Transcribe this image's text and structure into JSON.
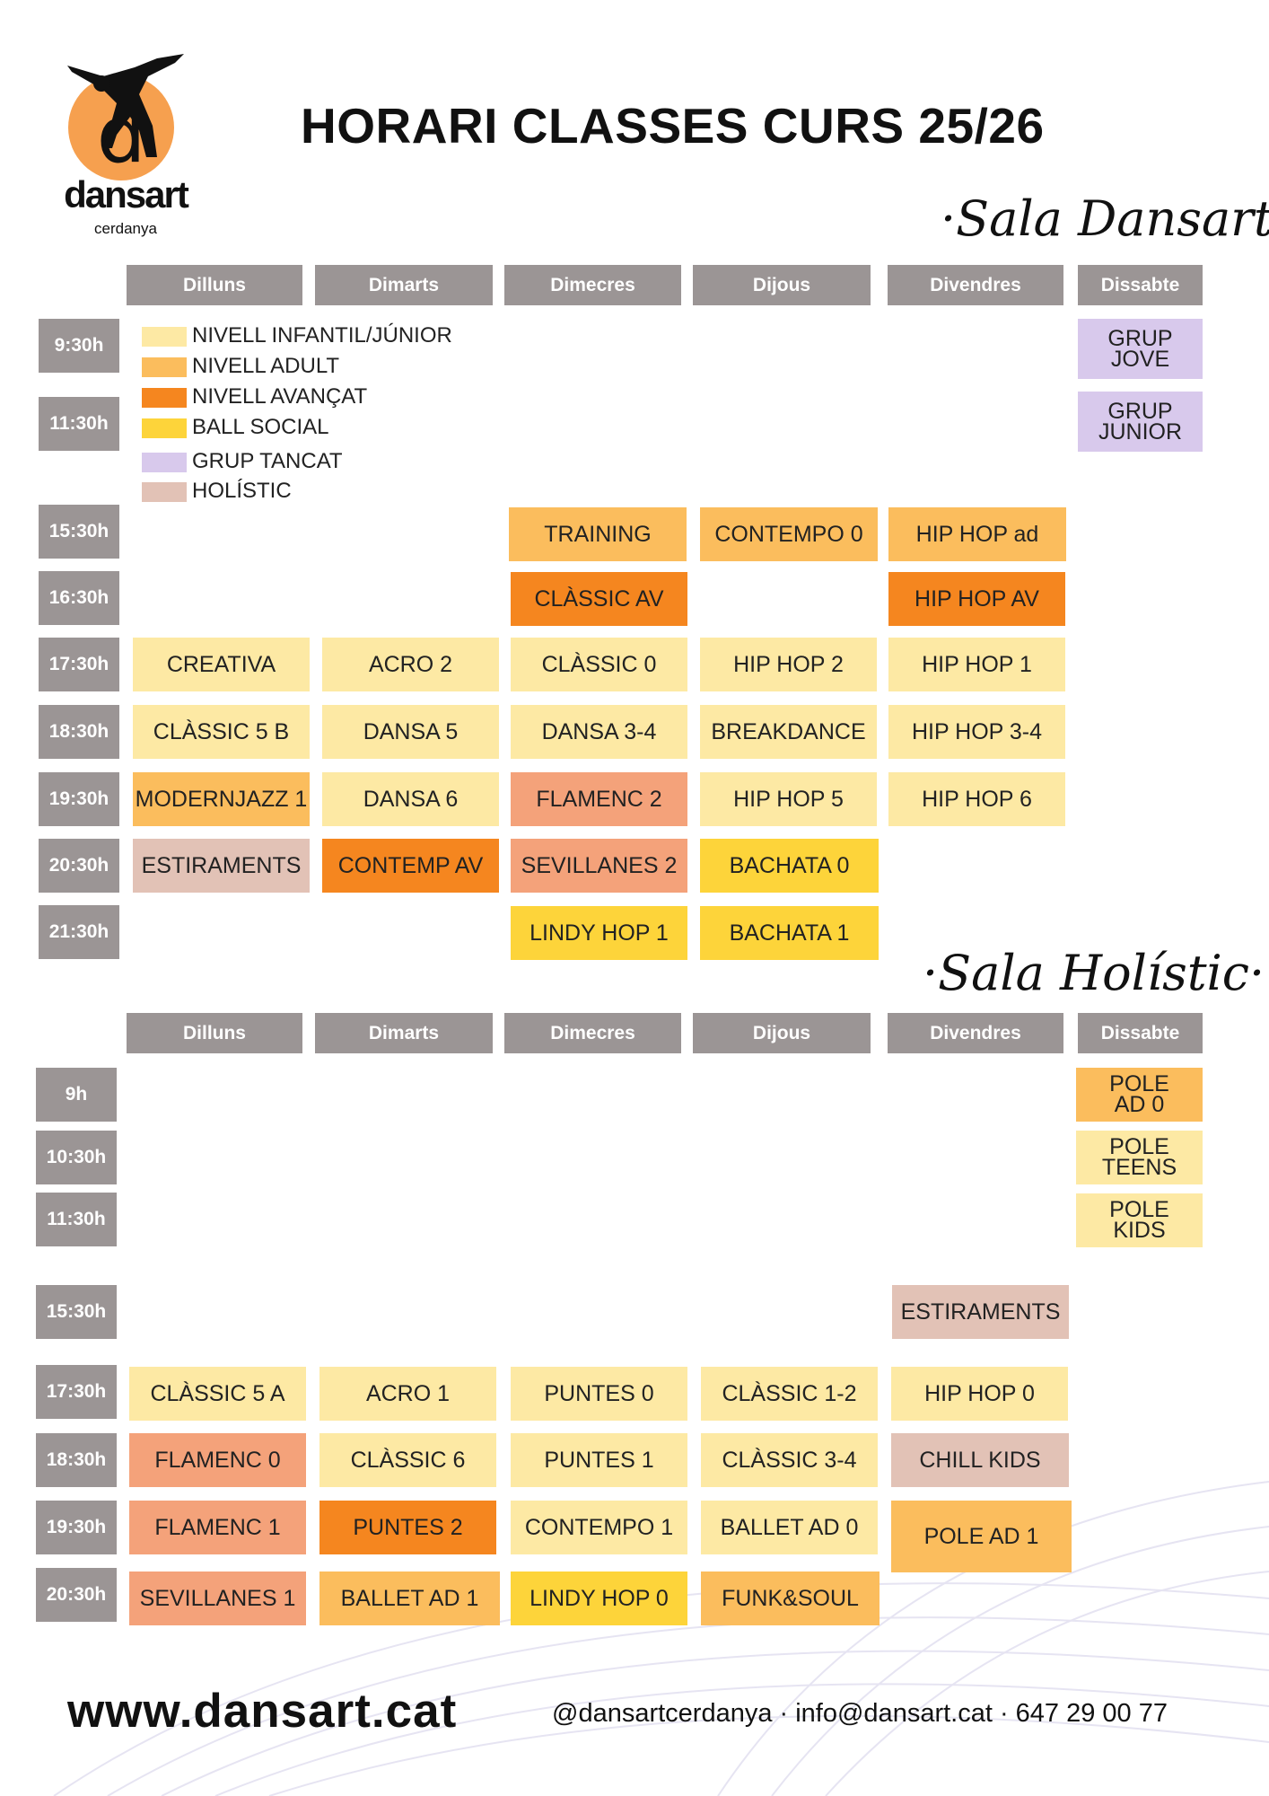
{
  "logo": {
    "name": "dansart",
    "sub": "cerdanya"
  },
  "title": "HORARI CLASSES CURS 25/26",
  "sala1": {
    "name": "·Sala Dansart·"
  },
  "sala2": {
    "name": "·Sala Holístic·"
  },
  "days": [
    "Dilluns",
    "Dimarts",
    "Dimecres",
    "Dijous",
    "Divendres",
    "Dissabte"
  ],
  "legend": [
    {
      "label": "NIVELL INFANTIL/JÚNIOR",
      "color": "#fde9a4"
    },
    {
      "label": "NIVELL ADULT",
      "color": "#fbbd5d"
    },
    {
      "label": "NIVELL AVANÇAT",
      "color": "#f5861f"
    },
    {
      "label": "BALL SOCIAL",
      "color": "#fdd43a"
    },
    {
      "label": "GRUP TANCAT",
      "color": "#d8c9ec"
    },
    {
      "label": "HOLÍSTIC",
      "color": "#e2c2b6"
    }
  ],
  "times1": [
    "9:30h",
    "11:30h",
    "15:30h",
    "16:30h",
    "17:30h",
    "18:30h",
    "19:30h",
    "20:30h",
    "21:30h"
  ],
  "times2": [
    "9h",
    "10:30h",
    "11:30h",
    "15:30h",
    "17:30h",
    "18:30h",
    "19:30h",
    "20:30h"
  ],
  "sala1_classes": {
    "sat_930": [
      "GRUP",
      "JOVE"
    ],
    "sat_1130": [
      "GRUP",
      "JUNIOR"
    ],
    "wed_1530": "TRAINING",
    "thu_1530": "CONTEMPO 0",
    "fri_1530": "HIP HOP ad",
    "wed_1630": "CLÀSSIC AV",
    "fri_1630": "HIP HOP AV",
    "mon_1730": "CREATIVA",
    "tue_1730": "ACRO 2",
    "wed_1730": "CLÀSSIC 0",
    "thu_1730": "HIP HOP 2",
    "fri_1730": "HIP HOP 1",
    "mon_1830": "CLÀSSIC 5 B",
    "tue_1830": "DANSA 5",
    "wed_1830": "DANSA 3-4",
    "thu_1830": "BREAKDANCE",
    "fri_1830": "HIP HOP 3-4",
    "mon_1930": "MODERNJAZZ 1",
    "tue_1930": "DANSA 6",
    "wed_1930": "FLAMENC 2",
    "thu_1930": "HIP HOP 5",
    "fri_1930": "HIP HOP 6",
    "mon_2030": "ESTIRAMENTS",
    "tue_2030": "CONTEMP AV",
    "wed_2030": "SEVILLANES 2",
    "thu_2030": "BACHATA 0",
    "wed_2130": "LINDY HOP 1",
    "thu_2130": "BACHATA 1"
  },
  "sala2_classes": {
    "sat_9": [
      "POLE",
      "AD 0"
    ],
    "sat_1030": [
      "POLE",
      "TEENS"
    ],
    "sat_1130": [
      "POLE",
      "KIDS"
    ],
    "fri_1530": "ESTIRAMENTS",
    "mon_1730": "CLÀSSIC 5 A",
    "tue_1730": "ACRO 1",
    "wed_1730": "PUNTES 0",
    "thu_1730": "CLÀSSIC 1-2",
    "fri_1730": "HIP HOP 0",
    "mon_1830": "FLAMENC 0",
    "tue_1830": "CLÀSSIC 6",
    "wed_1830": "PUNTES 1",
    "thu_1830": "CLÀSSIC 3-4",
    "fri_1830": "CHILL KIDS",
    "mon_1930": "FLAMENC 1",
    "tue_1930": "PUNTES 2",
    "wed_1930": "CONTEMPO 1",
    "thu_1930": "BALLET AD 0",
    "fri_1930": "POLE AD 1",
    "mon_2030": "SEVILLANES 1",
    "tue_2030": "BALLET AD 1",
    "wed_2030": "LINDY HOP 0",
    "thu_2030": "FUNK&SOUL"
  },
  "footer": {
    "site": "www.dansart.cat",
    "contact": "@dansartcerdanya  ·  info@dansart.cat  ·  647 29 00 77"
  }
}
